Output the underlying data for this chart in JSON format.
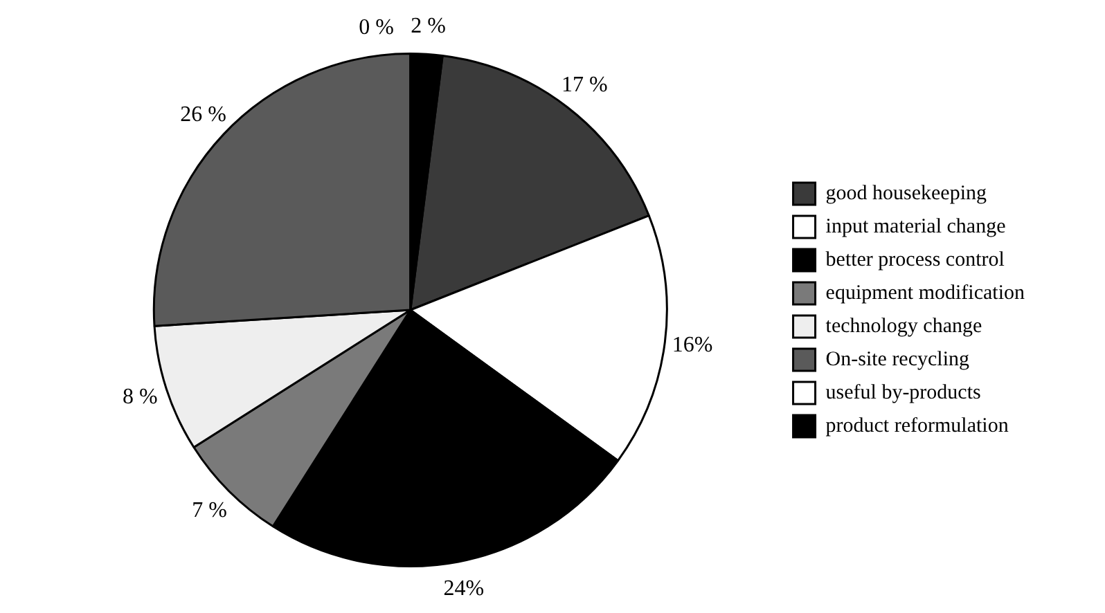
{
  "chart_data": {
    "type": "pie",
    "categories": [
      "good housekeeping",
      "input material change",
      "better process control",
      "equipment modification",
      "technology change",
      "On-site recycling",
      "useful by-products",
      "product reformulation"
    ],
    "values": [
      17,
      16,
      24,
      7,
      8,
      26,
      0,
      2
    ],
    "colors": [
      "#3a3a3a",
      "#ffffff",
      "#000000",
      "#7a7a7a",
      "#eeeeee",
      "#5a5a5a",
      "#ffffff",
      "#000000"
    ],
    "value_labels": [
      "17 %",
      "16%",
      "24%",
      "7 %",
      "8 %",
      "26 %",
      "0 %",
      "2 %"
    ],
    "legend": "right"
  }
}
